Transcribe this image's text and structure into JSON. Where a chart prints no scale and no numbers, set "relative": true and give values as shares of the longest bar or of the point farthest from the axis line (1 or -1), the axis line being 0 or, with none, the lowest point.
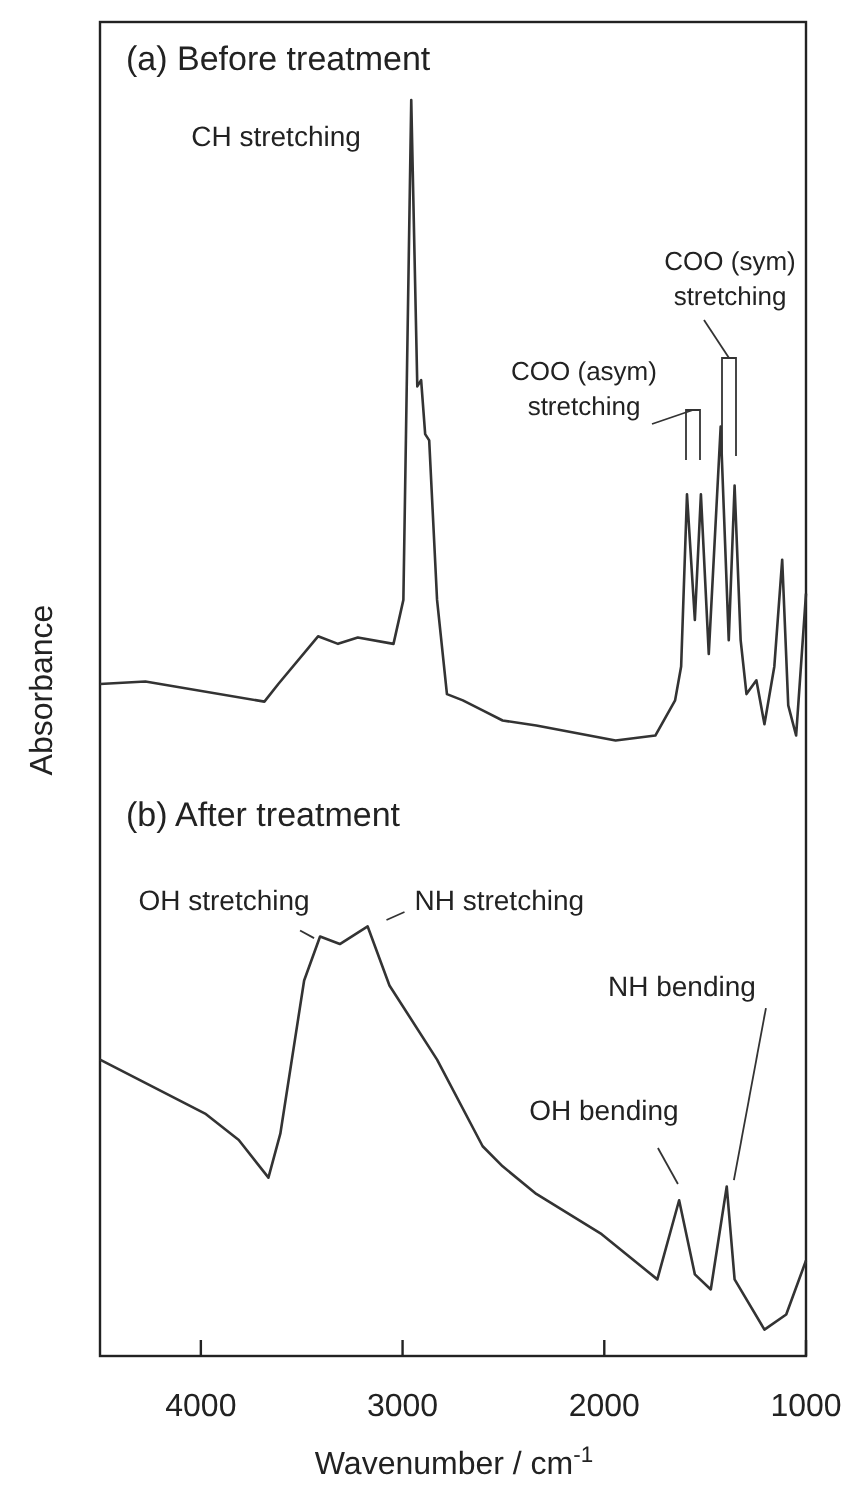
{
  "chart_data": {
    "type": "line",
    "relative": true,
    "xlabel": "Wavenumber / cm$^{-1}$",
    "ylabel": "Absorbance",
    "xlim": [
      4500,
      1000
    ],
    "xticks": [
      4000,
      3000,
      2000,
      1000
    ],
    "tick_labels": "x",
    "grid": false,
    "legend": false,
    "marker": "none",
    "line_style": "solid",
    "series": [
      {
        "color": "#333333",
        "x": [
          4500,
          4275,
          3685,
          3616,
          3419,
          3320,
          3222,
          3045,
          2996,
          2957,
          2927,
          2908,
          2888,
          2868,
          2829,
          2780,
          2701,
          2603,
          2504,
          2337,
          1944,
          1747,
          1649,
          1619,
          1590,
          1551,
          1521,
          1482,
          1423,
          1383,
          1354,
          1324,
          1295,
          1246,
          1206,
          1157,
          1118,
          1088,
          1049,
          1000
        ],
        "values": [
          0.535,
          0.537,
          0.521,
          0.535,
          0.573,
          0.567,
          0.572,
          0.567,
          0.602,
          1.0,
          0.772,
          0.777,
          0.734,
          0.729,
          0.602,
          0.527,
          0.522,
          0.514,
          0.506,
          0.502,
          0.49,
          0.494,
          0.522,
          0.549,
          0.686,
          0.586,
          0.686,
          0.559,
          0.74,
          0.57,
          0.693,
          0.57,
          0.527,
          0.538,
          0.503,
          0.549,
          0.634,
          0.518,
          0.494,
          0.607
        ]
      },
      {
        "color": "#333333",
        "x": [
          4500,
          3979,
          3812,
          3665,
          3606,
          3488,
          3409,
          3311,
          3173,
          3065,
          2829,
          2603,
          2504,
          2337,
          2013,
          1737,
          1629,
          1551,
          1472,
          1393,
          1354,
          1206,
          1098,
          1000
        ],
        "values": [
          0.236,
          0.193,
          0.172,
          0.142,
          0.177,
          0.299,
          0.334,
          0.328,
          0.342,
          0.295,
          0.236,
          0.167,
          0.151,
          0.129,
          0.097,
          0.061,
          0.124,
          0.065,
          0.053,
          0.135,
          0.061,
          0.021,
          0.033,
          0.076
        ]
      }
    ],
    "annotations": [
      "(a) Before treatment",
      {
        "text": "CH stretching",
        "x": 2957,
        "y": 1.0
      },
      "COO (asym)\nstretching",
      "COO (sym)\nstretching",
      "(b) After treatment",
      {
        "text": "OH stretching",
        "x": 3409,
        "y": 0.334
      },
      {
        "text": "NH stretching",
        "x": 3173,
        "y": 0.342
      },
      {
        "text": "OH bending",
        "x": 1629,
        "y": 0.124
      },
      {
        "text": "NH bending",
        "x": 1393,
        "y": 0.135
      }
    ]
  }
}
